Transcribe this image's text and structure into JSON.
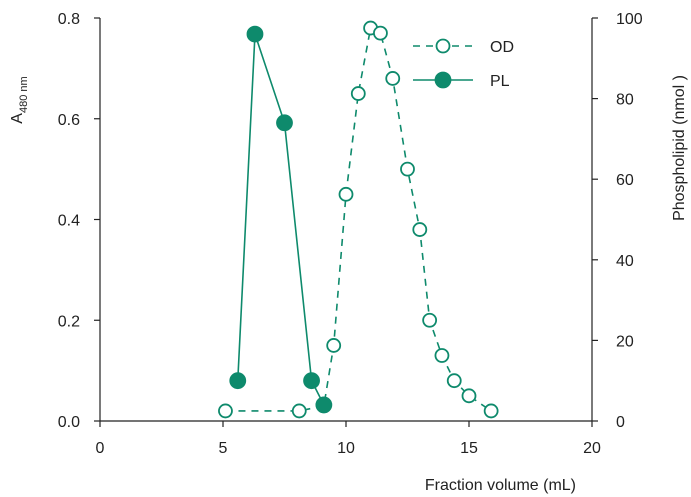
{
  "colors": {
    "series": "#0e8a6c",
    "axis": "#222222",
    "background": "#ffffff"
  },
  "chart_data": {
    "type": "line",
    "grid": false,
    "legend_position": "top-right",
    "x_axis": {
      "label": "Fraction volume (mL)",
      "range": [
        0,
        20
      ],
      "ticks": [
        0,
        5,
        10,
        15,
        20
      ],
      "tick_labels": [
        "0",
        "5",
        "10",
        "15",
        "20"
      ]
    },
    "y_left": {
      "label_main": "A",
      "label_sub": "480 nm",
      "range": [
        0,
        0.8
      ],
      "ticks": [
        0,
        0.2,
        0.4,
        0.6,
        0.8
      ],
      "tick_labels": [
        "0.0",
        "0.2",
        "0.4",
        "0.6",
        "0.8"
      ]
    },
    "y_right": {
      "label": "Phospholipid (nmol )",
      "range": [
        0,
        100
      ],
      "ticks": [
        0,
        20,
        40,
        60,
        80,
        100
      ],
      "tick_labels": [
        "0",
        "20",
        "40",
        "60",
        "80",
        "100"
      ]
    },
    "series": [
      {
        "name": "OD",
        "axis": "left",
        "style": "dashed",
        "marker": "open-circle",
        "x": [
          5.1,
          8.1,
          9.1,
          9.5,
          10.0,
          10.5,
          11.0,
          11.4,
          11.9,
          12.5,
          13.0,
          13.4,
          13.9,
          14.4,
          15.0,
          15.9
        ],
        "y": [
          0.02,
          0.02,
          0.03,
          0.15,
          0.45,
          0.65,
          0.78,
          0.77,
          0.68,
          0.5,
          0.38,
          0.2,
          0.13,
          0.08,
          0.05,
          0.02
        ]
      },
      {
        "name": "PL",
        "axis": "right",
        "style": "solid",
        "marker": "filled-circle",
        "x": [
          5.6,
          6.3,
          7.5,
          8.6,
          9.1
        ],
        "y": [
          10,
          96,
          74,
          10,
          4
        ]
      }
    ]
  }
}
